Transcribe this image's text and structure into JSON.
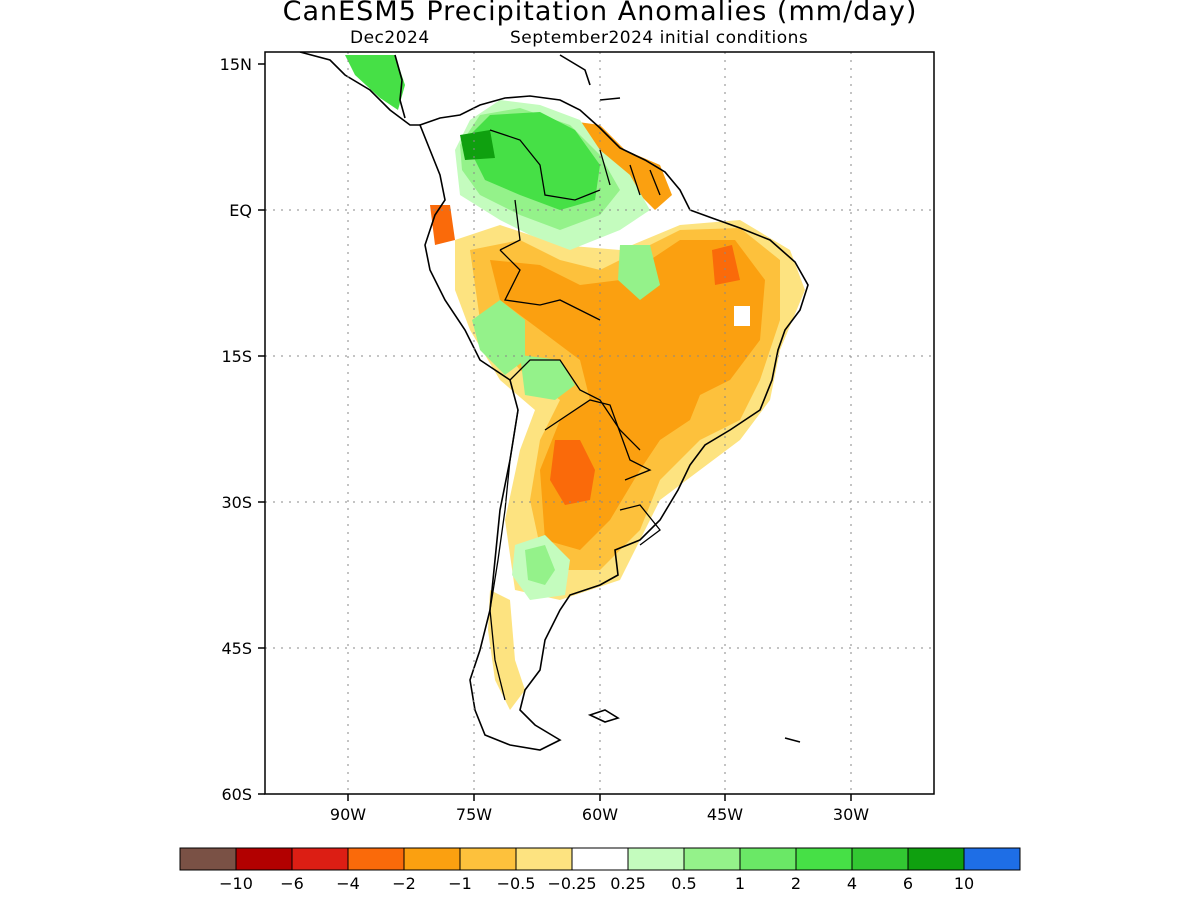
{
  "title": "CanESM5 Precipitation Anomalies (mm/day)",
  "subtitle_left": "Dec2024",
  "subtitle_right": "September2024 initial conditions",
  "map": {
    "lon_range": [
      -97,
      -17
    ],
    "lat_range": [
      -60,
      15
    ],
    "lat_ticks": [
      "15N",
      "EQ",
      "15S",
      "30S",
      "45S",
      "60S"
    ],
    "lon_ticks": [
      "90W",
      "75W",
      "60W",
      "45W",
      "30W"
    ],
    "gridlines": "dotted"
  },
  "colorbar": {
    "colors": [
      "#7a5145",
      "#b20000",
      "#dc1e14",
      "#fa6a0a",
      "#fba010",
      "#fdc13c",
      "#fde380",
      "#ffffff",
      "#c4fcbe",
      "#94f28a",
      "#6ae866",
      "#46e046",
      "#32c832",
      "#0fa00f",
      "#1e6ee6"
    ],
    "labels": [
      "−10",
      "−6",
      "−4",
      "−2",
      "−1",
      "−0.5",
      "−0.25",
      "0.25",
      "0.5",
      "1",
      "2",
      "4",
      "6",
      "10"
    ]
  }
}
